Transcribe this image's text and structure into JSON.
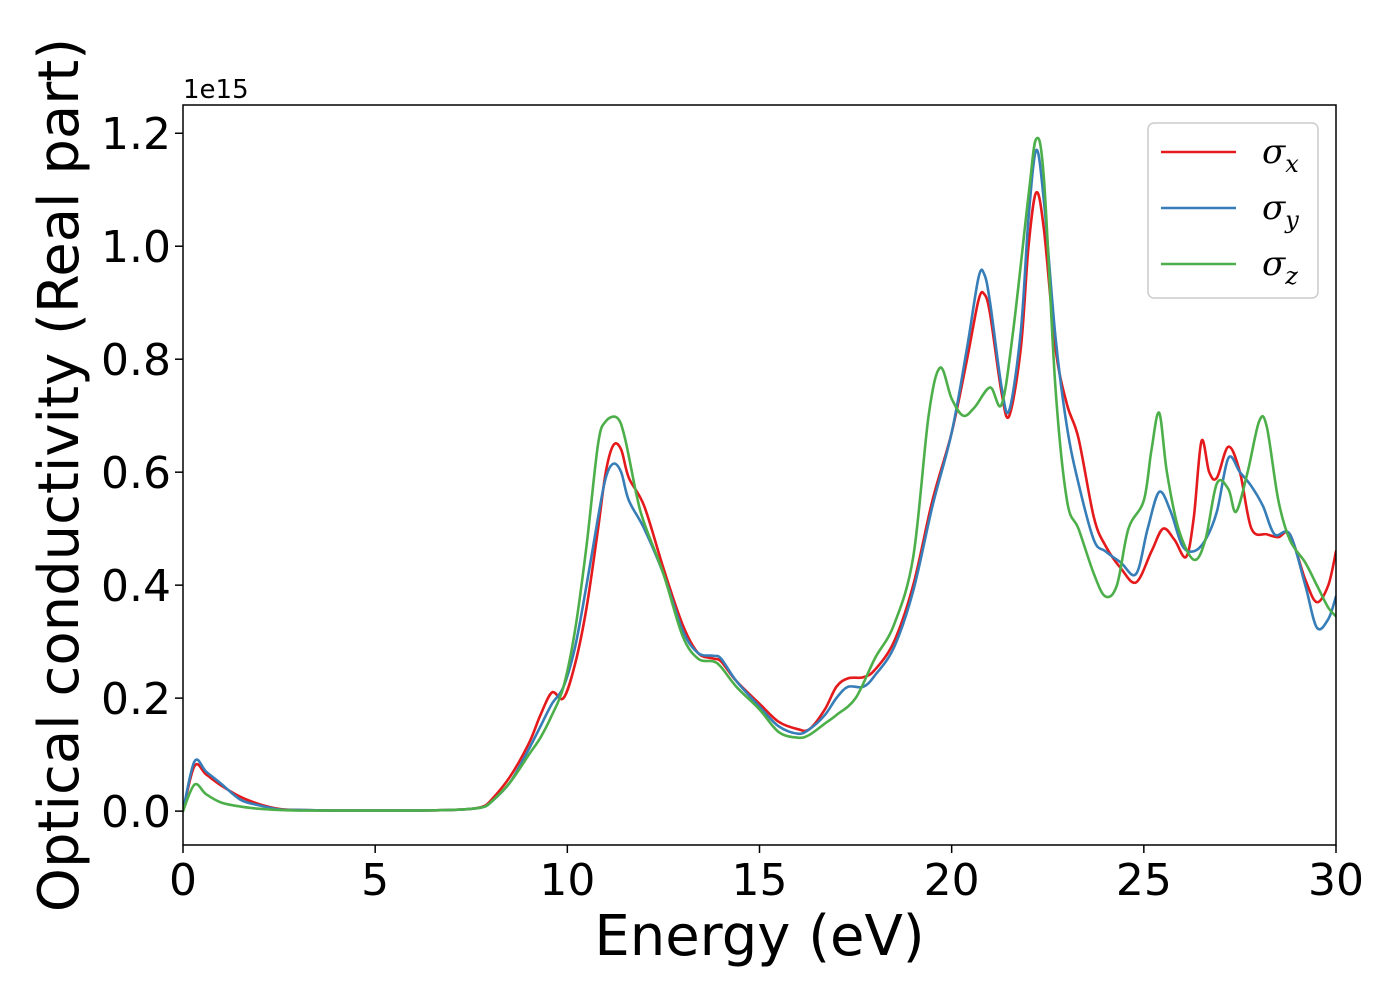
{
  "chart_data": {
    "type": "line",
    "xlabel": "Energy (eV)",
    "ylabel": "Optical conductivity (Real part)",
    "y_offset_label": "1e15",
    "xlim": [
      0,
      30
    ],
    "ylim": [
      -0.06,
      1.25
    ],
    "x_ticks": [
      0,
      5,
      10,
      15,
      20,
      25,
      30
    ],
    "x_tick_labels": [
      "0",
      "5",
      "10",
      "15",
      "20",
      "25",
      "30"
    ],
    "y_ticks": [
      0.0,
      0.2,
      0.4,
      0.6,
      0.8,
      1.0,
      1.2
    ],
    "y_tick_labels": [
      "0.0",
      "0.2",
      "0.4",
      "0.6",
      "0.8",
      "1.0",
      "1.2"
    ],
    "grid": false,
    "legend_position": "top-right",
    "series": [
      {
        "name": "σx",
        "legend_symbol": "σ",
        "legend_subscript": "x",
        "color": "#e41a1c",
        "points": [
          [
            0,
            0.0
          ],
          [
            0.3,
            0.08
          ],
          [
            0.6,
            0.065
          ],
          [
            1.0,
            0.045
          ],
          [
            1.5,
            0.025
          ],
          [
            2.0,
            0.012
          ],
          [
            2.5,
            0.004
          ],
          [
            3.0,
            0.002
          ],
          [
            4.0,
            0.001
          ],
          [
            5.0,
            0.001
          ],
          [
            6.0,
            0.001
          ],
          [
            7.0,
            0.002
          ],
          [
            7.5,
            0.004
          ],
          [
            7.8,
            0.008
          ],
          [
            8.0,
            0.018
          ],
          [
            8.5,
            0.06
          ],
          [
            9.0,
            0.12
          ],
          [
            9.3,
            0.17
          ],
          [
            9.6,
            0.21
          ],
          [
            9.9,
            0.2
          ],
          [
            10.2,
            0.26
          ],
          [
            10.5,
            0.36
          ],
          [
            10.8,
            0.5
          ],
          [
            11.0,
            0.6
          ],
          [
            11.2,
            0.648
          ],
          [
            11.4,
            0.64
          ],
          [
            11.6,
            0.59
          ],
          [
            12.0,
            0.54
          ],
          [
            12.5,
            0.43
          ],
          [
            13.0,
            0.33
          ],
          [
            13.4,
            0.28
          ],
          [
            13.8,
            0.27
          ],
          [
            14.0,
            0.265
          ],
          [
            14.4,
            0.23
          ],
          [
            15.0,
            0.19
          ],
          [
            15.5,
            0.158
          ],
          [
            16.0,
            0.145
          ],
          [
            16.3,
            0.145
          ],
          [
            16.7,
            0.18
          ],
          [
            17.0,
            0.22
          ],
          [
            17.3,
            0.235
          ],
          [
            17.7,
            0.237
          ],
          [
            18.0,
            0.25
          ],
          [
            18.5,
            0.3
          ],
          [
            19.0,
            0.4
          ],
          [
            19.5,
            0.55
          ],
          [
            20.0,
            0.67
          ],
          [
            20.4,
            0.8
          ],
          [
            20.7,
            0.905
          ],
          [
            20.85,
            0.915
          ],
          [
            21.0,
            0.88
          ],
          [
            21.3,
            0.74
          ],
          [
            21.5,
            0.7
          ],
          [
            21.8,
            0.82
          ],
          [
            22.0,
            1.0
          ],
          [
            22.2,
            1.095
          ],
          [
            22.4,
            1.03
          ],
          [
            22.7,
            0.82
          ],
          [
            23.0,
            0.72
          ],
          [
            23.3,
            0.66
          ],
          [
            23.7,
            0.52
          ],
          [
            24.0,
            0.47
          ],
          [
            24.4,
            0.43
          ],
          [
            24.8,
            0.405
          ],
          [
            25.2,
            0.46
          ],
          [
            25.5,
            0.5
          ],
          [
            25.8,
            0.48
          ],
          [
            26.1,
            0.45
          ],
          [
            26.3,
            0.52
          ],
          [
            26.5,
            0.655
          ],
          [
            26.7,
            0.6
          ],
          [
            26.9,
            0.59
          ],
          [
            27.2,
            0.645
          ],
          [
            27.5,
            0.6
          ],
          [
            27.8,
            0.5
          ],
          [
            28.2,
            0.49
          ],
          [
            28.5,
            0.485
          ],
          [
            28.8,
            0.49
          ],
          [
            29.2,
            0.41
          ],
          [
            29.5,
            0.37
          ],
          [
            29.8,
            0.4
          ],
          [
            30.0,
            0.46
          ]
        ]
      },
      {
        "name": "σy",
        "legend_symbol": "σ",
        "legend_subscript": "y",
        "color": "#377eb8",
        "points": [
          [
            0,
            0.0
          ],
          [
            0.3,
            0.088
          ],
          [
            0.6,
            0.07
          ],
          [
            1.0,
            0.048
          ],
          [
            1.5,
            0.02
          ],
          [
            2.0,
            0.01
          ],
          [
            2.5,
            0.003
          ],
          [
            3.0,
            0.002
          ],
          [
            4.0,
            0.001
          ],
          [
            5.0,
            0.001
          ],
          [
            6.0,
            0.001
          ],
          [
            7.0,
            0.002
          ],
          [
            7.5,
            0.004
          ],
          [
            7.8,
            0.007
          ],
          [
            8.0,
            0.015
          ],
          [
            8.5,
            0.05
          ],
          [
            9.0,
            0.11
          ],
          [
            9.3,
            0.15
          ],
          [
            9.6,
            0.19
          ],
          [
            9.9,
            0.22
          ],
          [
            10.2,
            0.29
          ],
          [
            10.5,
            0.4
          ],
          [
            10.8,
            0.52
          ],
          [
            11.0,
            0.59
          ],
          [
            11.2,
            0.615
          ],
          [
            11.4,
            0.6
          ],
          [
            11.6,
            0.55
          ],
          [
            12.0,
            0.5
          ],
          [
            12.5,
            0.42
          ],
          [
            13.0,
            0.32
          ],
          [
            13.4,
            0.28
          ],
          [
            13.8,
            0.275
          ],
          [
            14.0,
            0.27
          ],
          [
            14.4,
            0.23
          ],
          [
            15.0,
            0.185
          ],
          [
            15.5,
            0.15
          ],
          [
            16.0,
            0.137
          ],
          [
            16.3,
            0.145
          ],
          [
            16.7,
            0.17
          ],
          [
            17.0,
            0.2
          ],
          [
            17.3,
            0.22
          ],
          [
            17.7,
            0.22
          ],
          [
            18.0,
            0.24
          ],
          [
            18.5,
            0.29
          ],
          [
            19.0,
            0.39
          ],
          [
            19.5,
            0.54
          ],
          [
            20.0,
            0.67
          ],
          [
            20.4,
            0.82
          ],
          [
            20.7,
            0.945
          ],
          [
            20.85,
            0.95
          ],
          [
            21.0,
            0.9
          ],
          [
            21.3,
            0.75
          ],
          [
            21.5,
            0.71
          ],
          [
            21.8,
            0.85
          ],
          [
            22.0,
            1.05
          ],
          [
            22.2,
            1.17
          ],
          [
            22.4,
            1.08
          ],
          [
            22.7,
            0.84
          ],
          [
            23.0,
            0.68
          ],
          [
            23.3,
            0.58
          ],
          [
            23.7,
            0.48
          ],
          [
            24.0,
            0.46
          ],
          [
            24.4,
            0.44
          ],
          [
            24.8,
            0.42
          ],
          [
            25.1,
            0.5
          ],
          [
            25.4,
            0.565
          ],
          [
            25.7,
            0.53
          ],
          [
            26.0,
            0.47
          ],
          [
            26.3,
            0.46
          ],
          [
            26.6,
            0.48
          ],
          [
            26.9,
            0.53
          ],
          [
            27.2,
            0.625
          ],
          [
            27.5,
            0.6
          ],
          [
            27.8,
            0.575
          ],
          [
            28.1,
            0.54
          ],
          [
            28.4,
            0.49
          ],
          [
            28.8,
            0.49
          ],
          [
            29.2,
            0.4
          ],
          [
            29.5,
            0.325
          ],
          [
            29.8,
            0.34
          ],
          [
            30.0,
            0.38
          ]
        ]
      },
      {
        "name": "σz",
        "legend_symbol": "σ",
        "legend_subscript": "z",
        "color": "#4daf4a",
        "points": [
          [
            0,
            0.0
          ],
          [
            0.3,
            0.047
          ],
          [
            0.6,
            0.03
          ],
          [
            1.0,
            0.015
          ],
          [
            1.5,
            0.008
          ],
          [
            2.0,
            0.004
          ],
          [
            2.5,
            0.002
          ],
          [
            3.0,
            0.001
          ],
          [
            4.0,
            0.001
          ],
          [
            5.0,
            0.001
          ],
          [
            6.0,
            0.001
          ],
          [
            7.0,
            0.002
          ],
          [
            7.5,
            0.004
          ],
          [
            7.8,
            0.007
          ],
          [
            8.0,
            0.015
          ],
          [
            8.5,
            0.05
          ],
          [
            9.0,
            0.1
          ],
          [
            9.3,
            0.13
          ],
          [
            9.6,
            0.17
          ],
          [
            9.9,
            0.22
          ],
          [
            10.2,
            0.32
          ],
          [
            10.5,
            0.47
          ],
          [
            10.8,
            0.65
          ],
          [
            11.0,
            0.69
          ],
          [
            11.3,
            0.696
          ],
          [
            11.5,
            0.66
          ],
          [
            11.8,
            0.56
          ],
          [
            12.0,
            0.51
          ],
          [
            12.5,
            0.42
          ],
          [
            13.0,
            0.31
          ],
          [
            13.4,
            0.27
          ],
          [
            13.8,
            0.265
          ],
          [
            14.0,
            0.255
          ],
          [
            14.4,
            0.22
          ],
          [
            15.0,
            0.18
          ],
          [
            15.5,
            0.14
          ],
          [
            16.0,
            0.13
          ],
          [
            16.3,
            0.135
          ],
          [
            16.7,
            0.155
          ],
          [
            17.0,
            0.17
          ],
          [
            17.5,
            0.2
          ],
          [
            18.0,
            0.27
          ],
          [
            18.5,
            0.33
          ],
          [
            19.0,
            0.45
          ],
          [
            19.4,
            0.7
          ],
          [
            19.7,
            0.785
          ],
          [
            20.0,
            0.73
          ],
          [
            20.3,
            0.7
          ],
          [
            20.6,
            0.715
          ],
          [
            21.0,
            0.75
          ],
          [
            21.3,
            0.72
          ],
          [
            21.6,
            0.85
          ],
          [
            22.0,
            1.09
          ],
          [
            22.2,
            1.19
          ],
          [
            22.4,
            1.12
          ],
          [
            22.7,
            0.75
          ],
          [
            23.0,
            0.55
          ],
          [
            23.3,
            0.5
          ],
          [
            23.7,
            0.42
          ],
          [
            24.0,
            0.38
          ],
          [
            24.3,
            0.4
          ],
          [
            24.6,
            0.5
          ],
          [
            25.0,
            0.55
          ],
          [
            25.2,
            0.64
          ],
          [
            25.4,
            0.705
          ],
          [
            25.6,
            0.6
          ],
          [
            25.9,
            0.5
          ],
          [
            26.3,
            0.445
          ],
          [
            26.6,
            0.48
          ],
          [
            26.9,
            0.58
          ],
          [
            27.2,
            0.57
          ],
          [
            27.4,
            0.53
          ],
          [
            27.7,
            0.6
          ],
          [
            28.0,
            0.69
          ],
          [
            28.2,
            0.68
          ],
          [
            28.5,
            0.55
          ],
          [
            28.8,
            0.48
          ],
          [
            29.2,
            0.44
          ],
          [
            29.5,
            0.4
          ],
          [
            29.8,
            0.36
          ],
          [
            30.0,
            0.345
          ]
        ]
      }
    ]
  }
}
